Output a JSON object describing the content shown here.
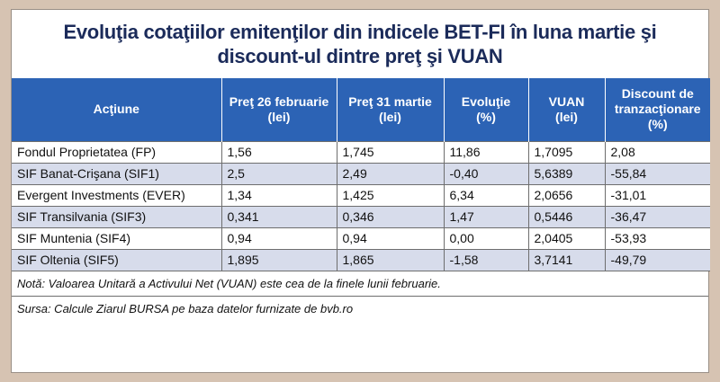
{
  "title_line1": "Evoluţia cotaţiilor emitenţilor din indicele BET-FI în luna martie şi",
  "title_line2": "discount-ul dintre preţ şi VUAN",
  "headers": [
    [
      "Acţiune"
    ],
    [
      "Preţ 26 februarie",
      "(lei)"
    ],
    [
      "Preţ 31 martie",
      "(lei)"
    ],
    [
      "Evoluţie",
      "(%)"
    ],
    [
      "VUAN",
      "(lei)"
    ],
    [
      "Discount de",
      "tranzacţionare",
      "(%)"
    ]
  ],
  "rows": [
    [
      "Fondul Proprietatea (FP)",
      "1,56",
      "1,745",
      "11,86",
      "1,7095",
      "2,08"
    ],
    [
      "SIF Banat-Crişana (SIF1)",
      "2,5",
      "2,49",
      "-0,40",
      "5,6389",
      "-55,84"
    ],
    [
      "Evergent Investments (EVER)",
      "1,34",
      "1,425",
      "6,34",
      "2,0656",
      "-31,01"
    ],
    [
      "SIF Transilvania (SIF3)",
      "0,341",
      "0,346",
      "1,47",
      "0,5446",
      "-36,47"
    ],
    [
      "SIF Muntenia (SIF4)",
      "0,94",
      "0,94",
      "0,00",
      "2,0405",
      "-53,93"
    ],
    [
      "SIF Oltenia (SIF5)",
      "1,895",
      "1,865",
      "-1,58",
      "3,7141",
      "-49,79"
    ]
  ],
  "note": "Notă: Valoarea Unitară a Activului Net (VUAN) este cea de la finele lunii februarie.",
  "source": "Sursa: Calcule Ziarul BURSA pe baza datelor furnizate de bvb.ro",
  "colors": {
    "header_bg": "#2c63b5",
    "title_text": "#1b2b5a",
    "row_alt_bg": "#d7dceb",
    "page_bg": "#d6c3b2"
  }
}
